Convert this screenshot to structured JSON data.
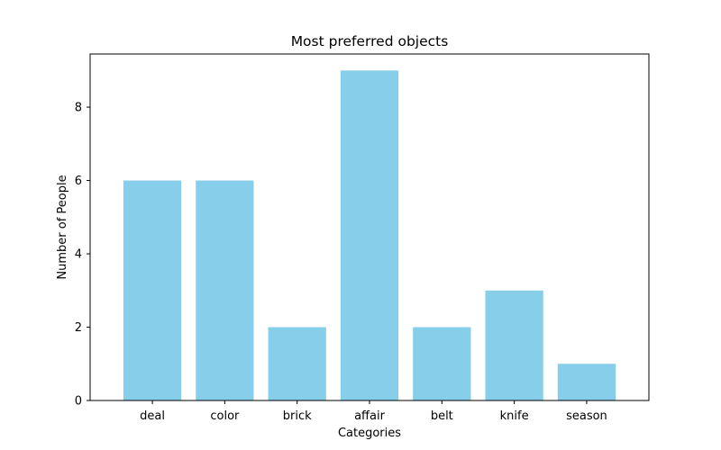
{
  "chart_data": {
    "type": "bar",
    "title": "Most preferred objects",
    "xlabel": "Categories",
    "ylabel": "Number of People",
    "categories": [
      "deal",
      "color",
      "brick",
      "affair",
      "belt",
      "knife",
      "season"
    ],
    "values": [
      6,
      6,
      2,
      9,
      2,
      3,
      1
    ],
    "ylim": [
      0,
      9.45
    ],
    "yticks": [
      0,
      2,
      4,
      6,
      8
    ],
    "bar_color": "#87CEEB",
    "grid": false,
    "legend": "none"
  }
}
